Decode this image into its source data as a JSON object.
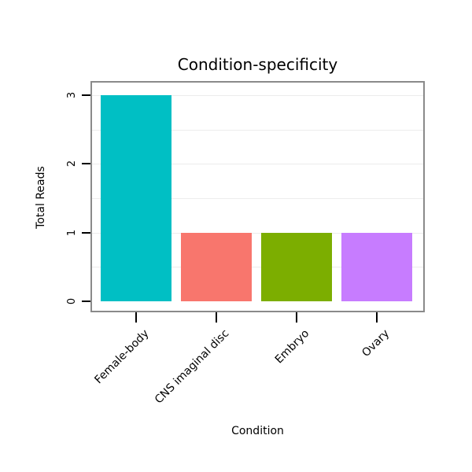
{
  "chart_data": {
    "type": "bar",
    "title": "Condition-specificity",
    "xlabel": "Condition",
    "ylabel": "Total Reads",
    "categories": [
      "Female-body",
      "CNS imaginal disc",
      "Embryo",
      "Ovary"
    ],
    "values": [
      3,
      1,
      1,
      1
    ],
    "bar_colors": [
      "#00BFC4",
      "#F8766D",
      "#7CAE00",
      "#C77CFF"
    ],
    "ylim": [
      0,
      3
    ],
    "yticks": [
      "0",
      "1",
      "2",
      "3"
    ],
    "grid": "horizontal light gray lines every 0.5",
    "legend": "none"
  },
  "colors": {
    "background": "#ffffff",
    "panel_frame": "#8a8a8a",
    "gridline": "#ececec",
    "tick": "#000000",
    "text": "#000000"
  }
}
